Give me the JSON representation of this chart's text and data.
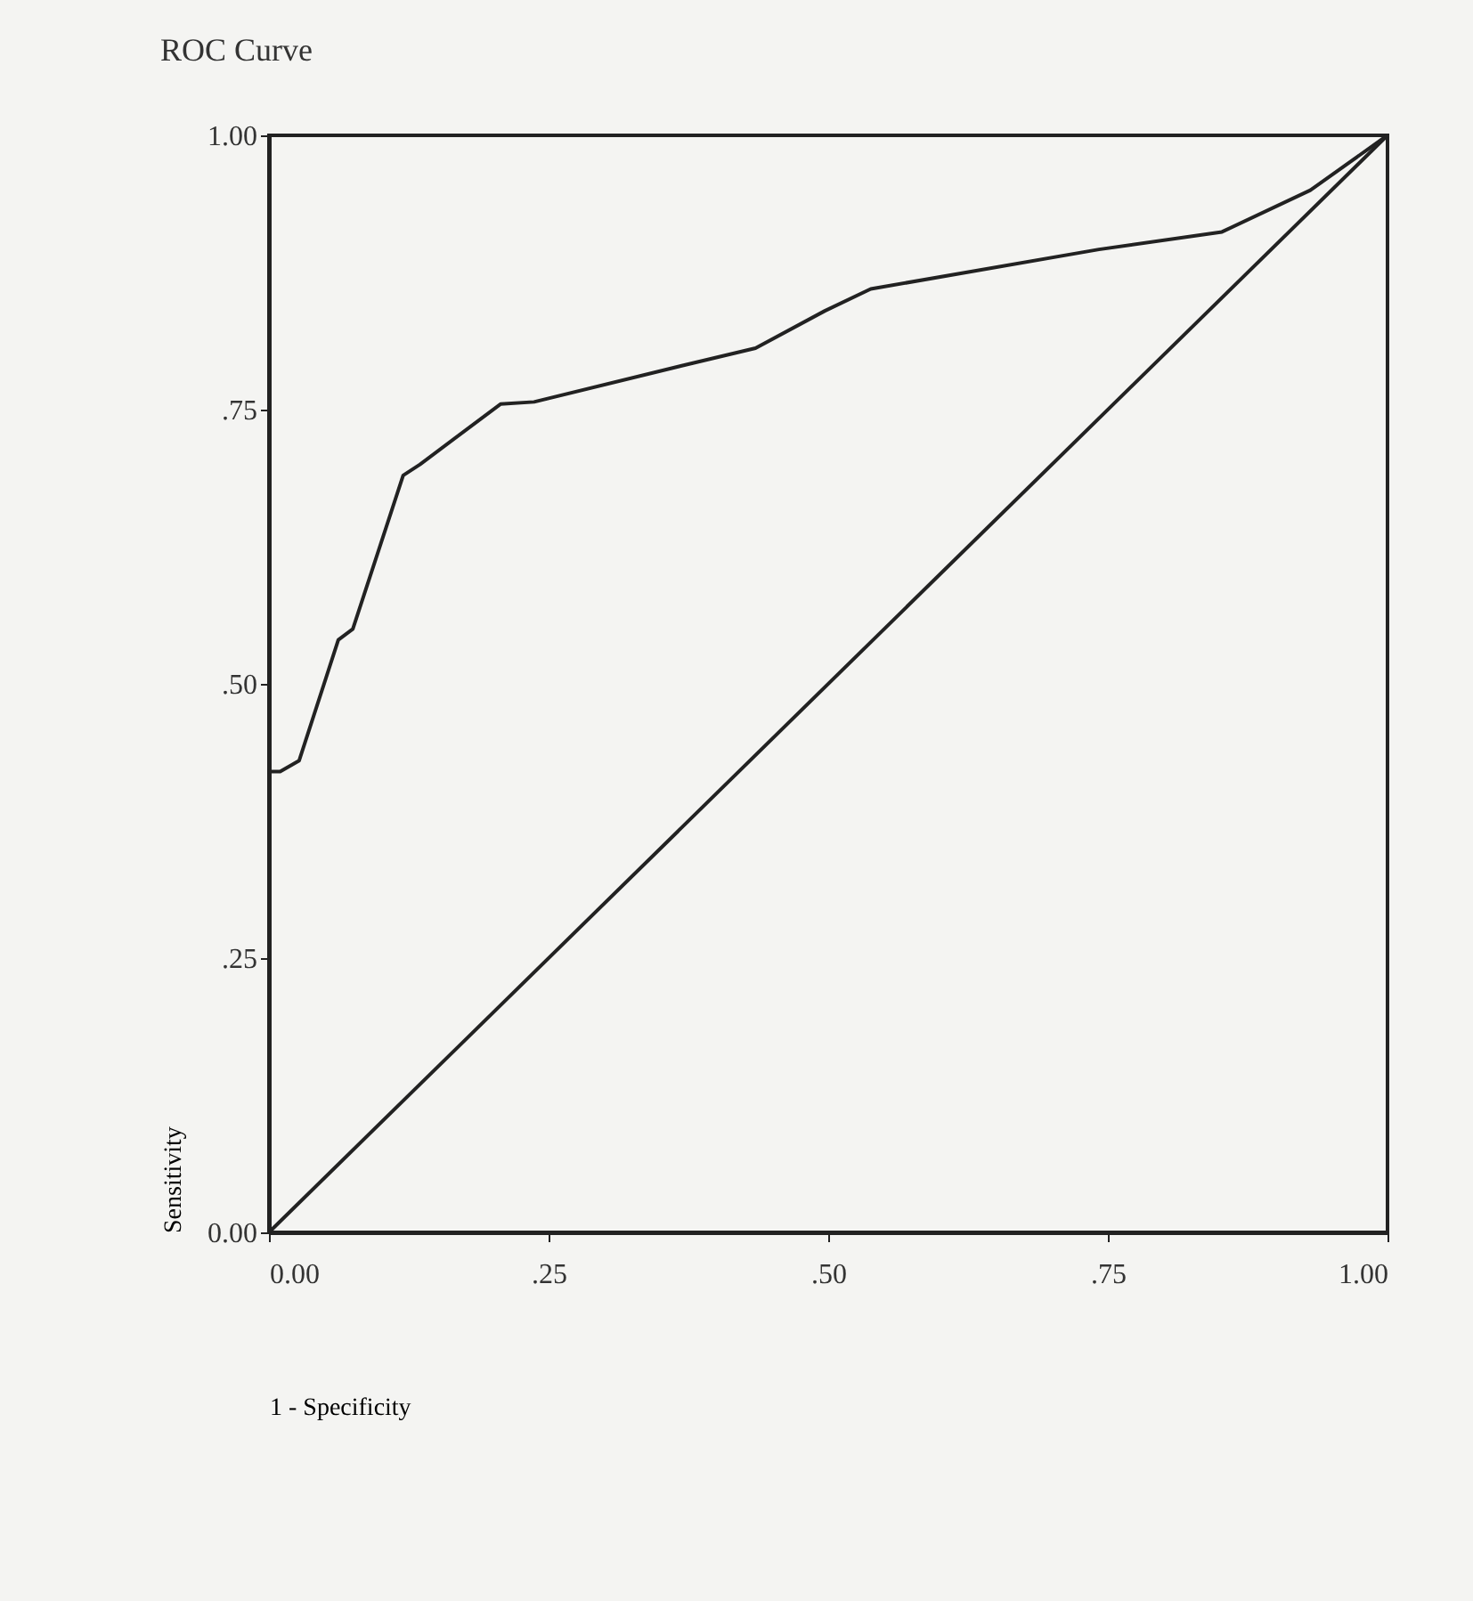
{
  "chart_data": {
    "type": "line",
    "title": "ROC Curve",
    "xlabel": "1 - Specificity",
    "ylabel": "Sensitivity",
    "xlim": [
      0,
      1
    ],
    "ylim": [
      0,
      1
    ],
    "xticks": [
      {
        "value": 0,
        "label": "0.00"
      },
      {
        "value": 0.25,
        "label": ".25"
      },
      {
        "value": 0.5,
        "label": ".50"
      },
      {
        "value": 0.75,
        "label": ".75"
      },
      {
        "value": 1,
        "label": "1.00"
      }
    ],
    "yticks": [
      {
        "value": 0,
        "label": "0.00"
      },
      {
        "value": 0.25,
        "label": ".25"
      },
      {
        "value": 0.5,
        "label": ".50"
      },
      {
        "value": 0.75,
        "label": ".75"
      },
      {
        "value": 1,
        "label": "1.00"
      }
    ],
    "grid": false,
    "marker": "none",
    "line_style": "solid",
    "series": [
      {
        "color": "#222222",
        "x": [
          0,
          0.01,
          0.027,
          0.062,
          0.075,
          0.12,
          0.135,
          0.207,
          0.237,
          0.369,
          0.435,
          0.497,
          0.538,
          0.742,
          0.852,
          0.931,
          1
        ],
        "values": [
          0.42,
          0.42,
          0.43,
          0.54,
          0.55,
          0.69,
          0.7,
          0.755,
          0.757,
          0.79,
          0.806,
          0.84,
          0.86,
          0.896,
          0.912,
          0.95,
          1
        ]
      },
      {
        "color": "#222222",
        "x": [
          0,
          1
        ],
        "values": [
          0,
          1
        ]
      }
    ]
  }
}
